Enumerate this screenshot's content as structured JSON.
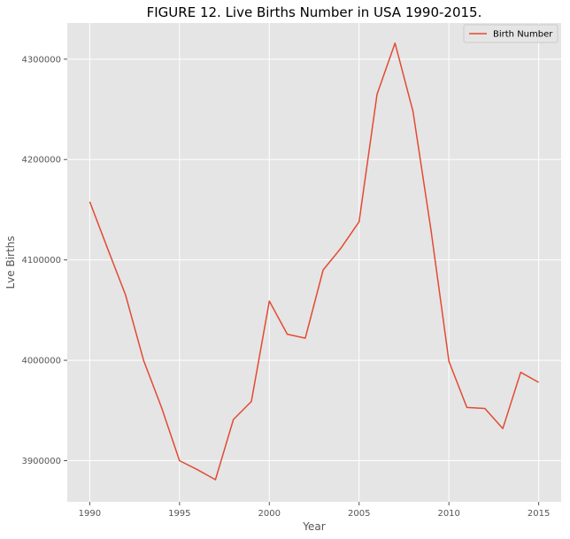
{
  "chart_data": {
    "type": "line",
    "title": "FIGURE 12. Live Births Number in USA 1990-2015.",
    "xlabel": "Year",
    "ylabel": "Lve Births",
    "xlim": [
      1988.75,
      2016.25
    ],
    "ylim": [
      3859000,
      4336000
    ],
    "xticks": [
      1990,
      1995,
      2000,
      2005,
      2010,
      2015
    ],
    "yticks": [
      3900000,
      4000000,
      4100000,
      4200000,
      4300000
    ],
    "grid": true,
    "legend_position": "top-right",
    "series": [
      {
        "name": "Birth Number",
        "color": "#E24A33",
        "x": [
          1990,
          1991,
          1992,
          1993,
          1994,
          1995,
          1996,
          1997,
          1998,
          1999,
          2000,
          2001,
          2002,
          2003,
          2004,
          2005,
          2006,
          2007,
          2008,
          2009,
          2010,
          2011,
          2012,
          2013,
          2014,
          2015
        ],
        "y": [
          4158000,
          4111000,
          4065000,
          4000000,
          3953000,
          3900000,
          3891000,
          3881000,
          3941000,
          3959000,
          4059000,
          4026000,
          4022000,
          4090000,
          4112000,
          4138000,
          4265000,
          4316000,
          4248000,
          4130000,
          3999000,
          3953000,
          3952000,
          3932000,
          3988000,
          3978000
        ]
      }
    ]
  },
  "colors": {
    "plot_background": "#E5E5E5",
    "grid": "#FFFFFF",
    "text": "#555555"
  }
}
